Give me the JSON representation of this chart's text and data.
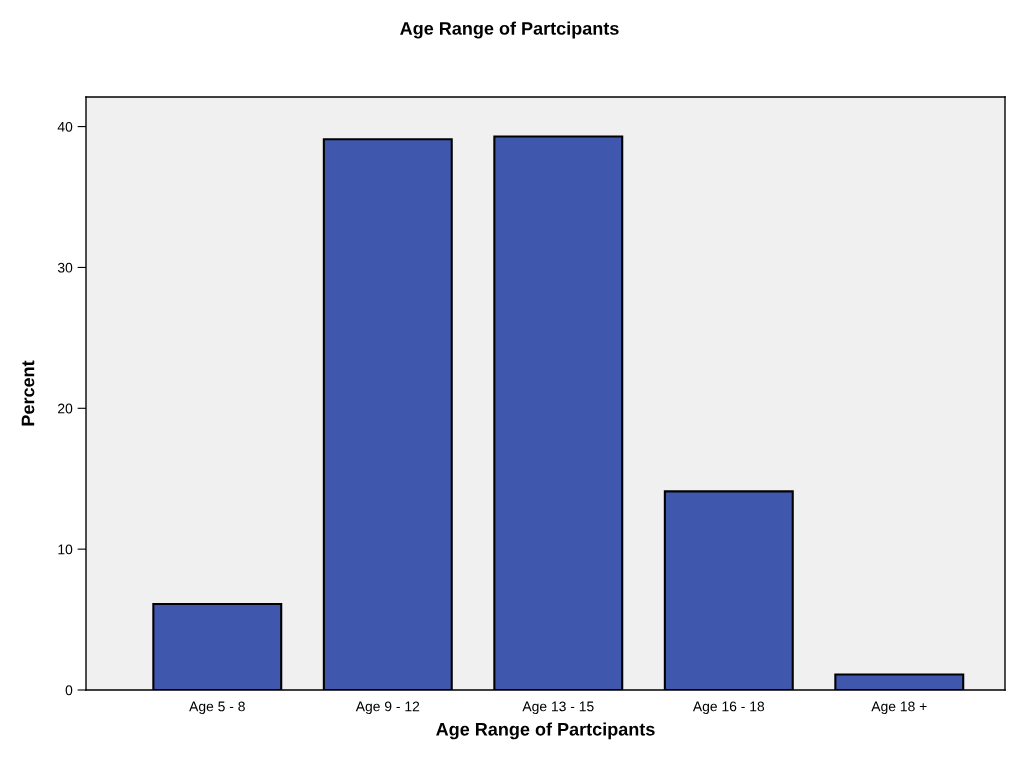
{
  "chart_data": {
    "type": "bar",
    "title": "Age Range of Partcipants",
    "xlabel": "Age Range of Partcipants",
    "ylabel": "Percent",
    "categories": [
      "Age 5 - 8",
      "Age 9 - 12",
      "Age 13 - 15",
      "Age 16 - 18",
      "Age 18 +"
    ],
    "values": [
      6.1,
      39.1,
      39.3,
      14.1,
      1.1
    ],
    "color": "#3f58ad",
    "ylim": [
      0,
      42.1
    ],
    "yticks": [
      0,
      10,
      20,
      30,
      40
    ],
    "grid": false,
    "legend": false
  }
}
